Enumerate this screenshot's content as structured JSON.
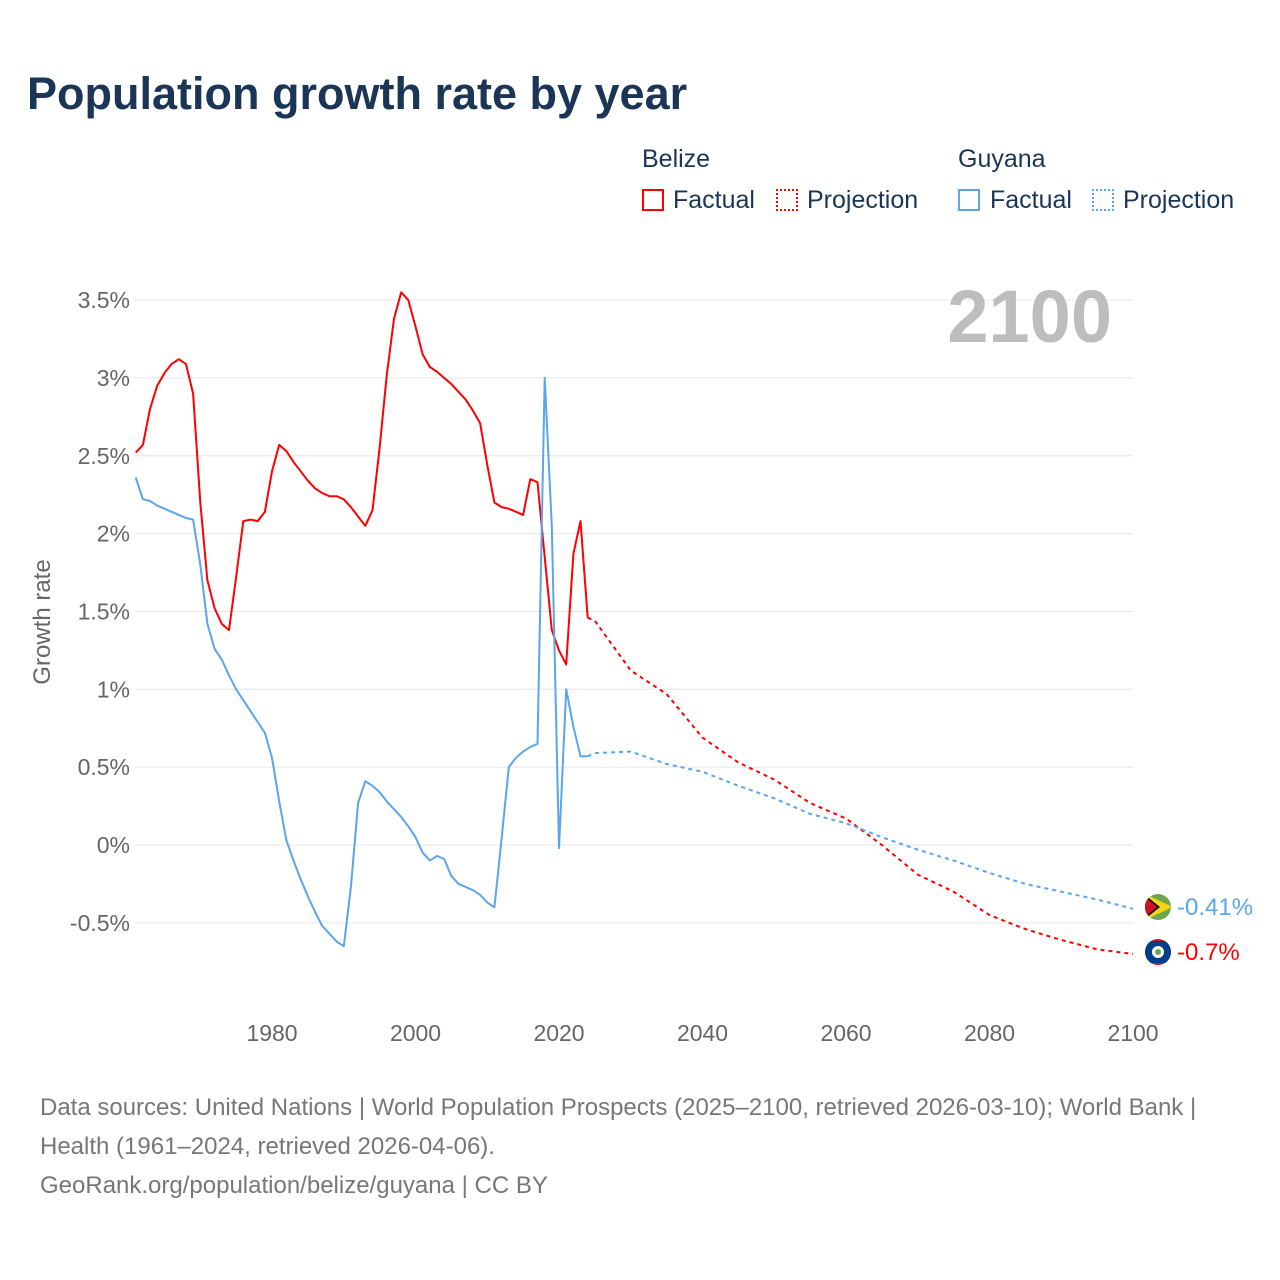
{
  "title": "Population growth rate by year",
  "legend": {
    "groups": [
      {
        "name": "Belize",
        "factual": "Factual",
        "projection": "Projection",
        "color": "#ff0000"
      },
      {
        "name": "Guyana",
        "factual": "Factual",
        "projection": "Projection",
        "color": "#5ba5ea"
      }
    ]
  },
  "year_label": "2100",
  "end_labels": {
    "guyana": "-0.41%",
    "belize": "-0.7%"
  },
  "footer": {
    "sources": "Data sources: United Nations | World Population Prospects (2025–2100, retrieved 2026-03-10); World Bank | Health (1961–2024, retrieved 2026-04-06).",
    "credit": "GeoRank.org/population/belize/guyana | CC BY"
  },
  "chart_data": {
    "type": "line",
    "title": "Population growth rate by year",
    "ylabel": "Growth rate",
    "xlabel": "",
    "xlim": [
      1961,
      2100
    ],
    "ylim": [
      -0.8,
      3.6
    ],
    "x_ticks": [
      1980,
      2000,
      2020,
      2040,
      2060,
      2080,
      2100
    ],
    "y_ticks": [
      -0.5,
      0,
      0.5,
      1,
      1.5,
      2,
      2.5,
      3,
      3.5
    ],
    "y_tick_labels": [
      "-0.5%",
      "0%",
      "0.5%",
      "1%",
      "1.5%",
      "2%",
      "2.5%",
      "3%",
      "3.5%"
    ],
    "grid": true,
    "legend_position": "top-right",
    "series": [
      {
        "name": "Belize Factual",
        "color": "#ff0000",
        "dashed": false,
        "x_start": 1961,
        "values": [
          2.52,
          2.57,
          2.8,
          2.95,
          3.03,
          3.09,
          3.12,
          3.09,
          2.9,
          2.2,
          1.7,
          1.52,
          1.42,
          1.38,
          1.72,
          2.08,
          2.09,
          2.08,
          2.14,
          2.4,
          2.57,
          2.53,
          2.46,
          2.4,
          2.34,
          2.29,
          2.26,
          2.24,
          2.24,
          2.22,
          2.17,
          2.11,
          2.05,
          2.15,
          2.55,
          3.02,
          3.38,
          3.55,
          3.5,
          3.33,
          3.15,
          3.07,
          3.04,
          3.0,
          2.96,
          2.91,
          2.86,
          2.79,
          2.71,
          2.44,
          2.2,
          2.17,
          2.16,
          2.14,
          2.12,
          2.35,
          2.33,
          1.85,
          1.38,
          1.25,
          1.16,
          1.87,
          2.08,
          1.46
        ]
      },
      {
        "name": "Belize Projection",
        "color": "#ff0000",
        "dashed": true,
        "x": [
          2024,
          2025,
          2030,
          2035,
          2040,
          2045,
          2050,
          2055,
          2060,
          2065,
          2070,
          2075,
          2080,
          2085,
          2090,
          2095,
          2100
        ],
        "values": [
          1.46,
          1.44,
          1.12,
          0.97,
          0.69,
          0.53,
          0.42,
          0.27,
          0.17,
          0.0,
          -0.19,
          -0.3,
          -0.45,
          -0.54,
          -0.61,
          -0.67,
          -0.7
        ]
      },
      {
        "name": "Guyana Factual",
        "color": "#5ba5ea",
        "dashed": false,
        "x_start": 1961,
        "values": [
          2.36,
          2.22,
          2.21,
          2.18,
          2.16,
          2.14,
          2.12,
          2.1,
          2.09,
          1.8,
          1.42,
          1.26,
          1.19,
          1.09,
          1.0,
          0.93,
          0.86,
          0.79,
          0.72,
          0.56,
          0.28,
          0.03,
          -0.1,
          -0.22,
          -0.33,
          -0.43,
          -0.52,
          -0.57,
          -0.62,
          -0.65,
          -0.27,
          0.27,
          0.41,
          0.38,
          0.34,
          0.28,
          0.23,
          0.18,
          0.12,
          0.05,
          -0.05,
          -0.1,
          -0.07,
          -0.09,
          -0.2,
          -0.25,
          -0.27,
          -0.29,
          -0.32,
          -0.37,
          -0.4,
          0.04,
          0.5,
          0.56,
          0.6,
          0.63,
          0.65,
          3.0,
          2.05,
          -0.02,
          1.0,
          0.76,
          0.57,
          0.57
        ]
      },
      {
        "name": "Guyana Projection",
        "color": "#5ba5ea",
        "dashed": true,
        "x": [
          2024,
          2025,
          2030,
          2035,
          2040,
          2045,
          2050,
          2055,
          2060,
          2065,
          2070,
          2075,
          2080,
          2085,
          2090,
          2095,
          2100
        ],
        "values": [
          0.57,
          0.59,
          0.6,
          0.52,
          0.47,
          0.38,
          0.3,
          0.2,
          0.14,
          0.05,
          -0.03,
          -0.1,
          -0.18,
          -0.25,
          -0.3,
          -0.35,
          -0.41
        ]
      }
    ]
  }
}
